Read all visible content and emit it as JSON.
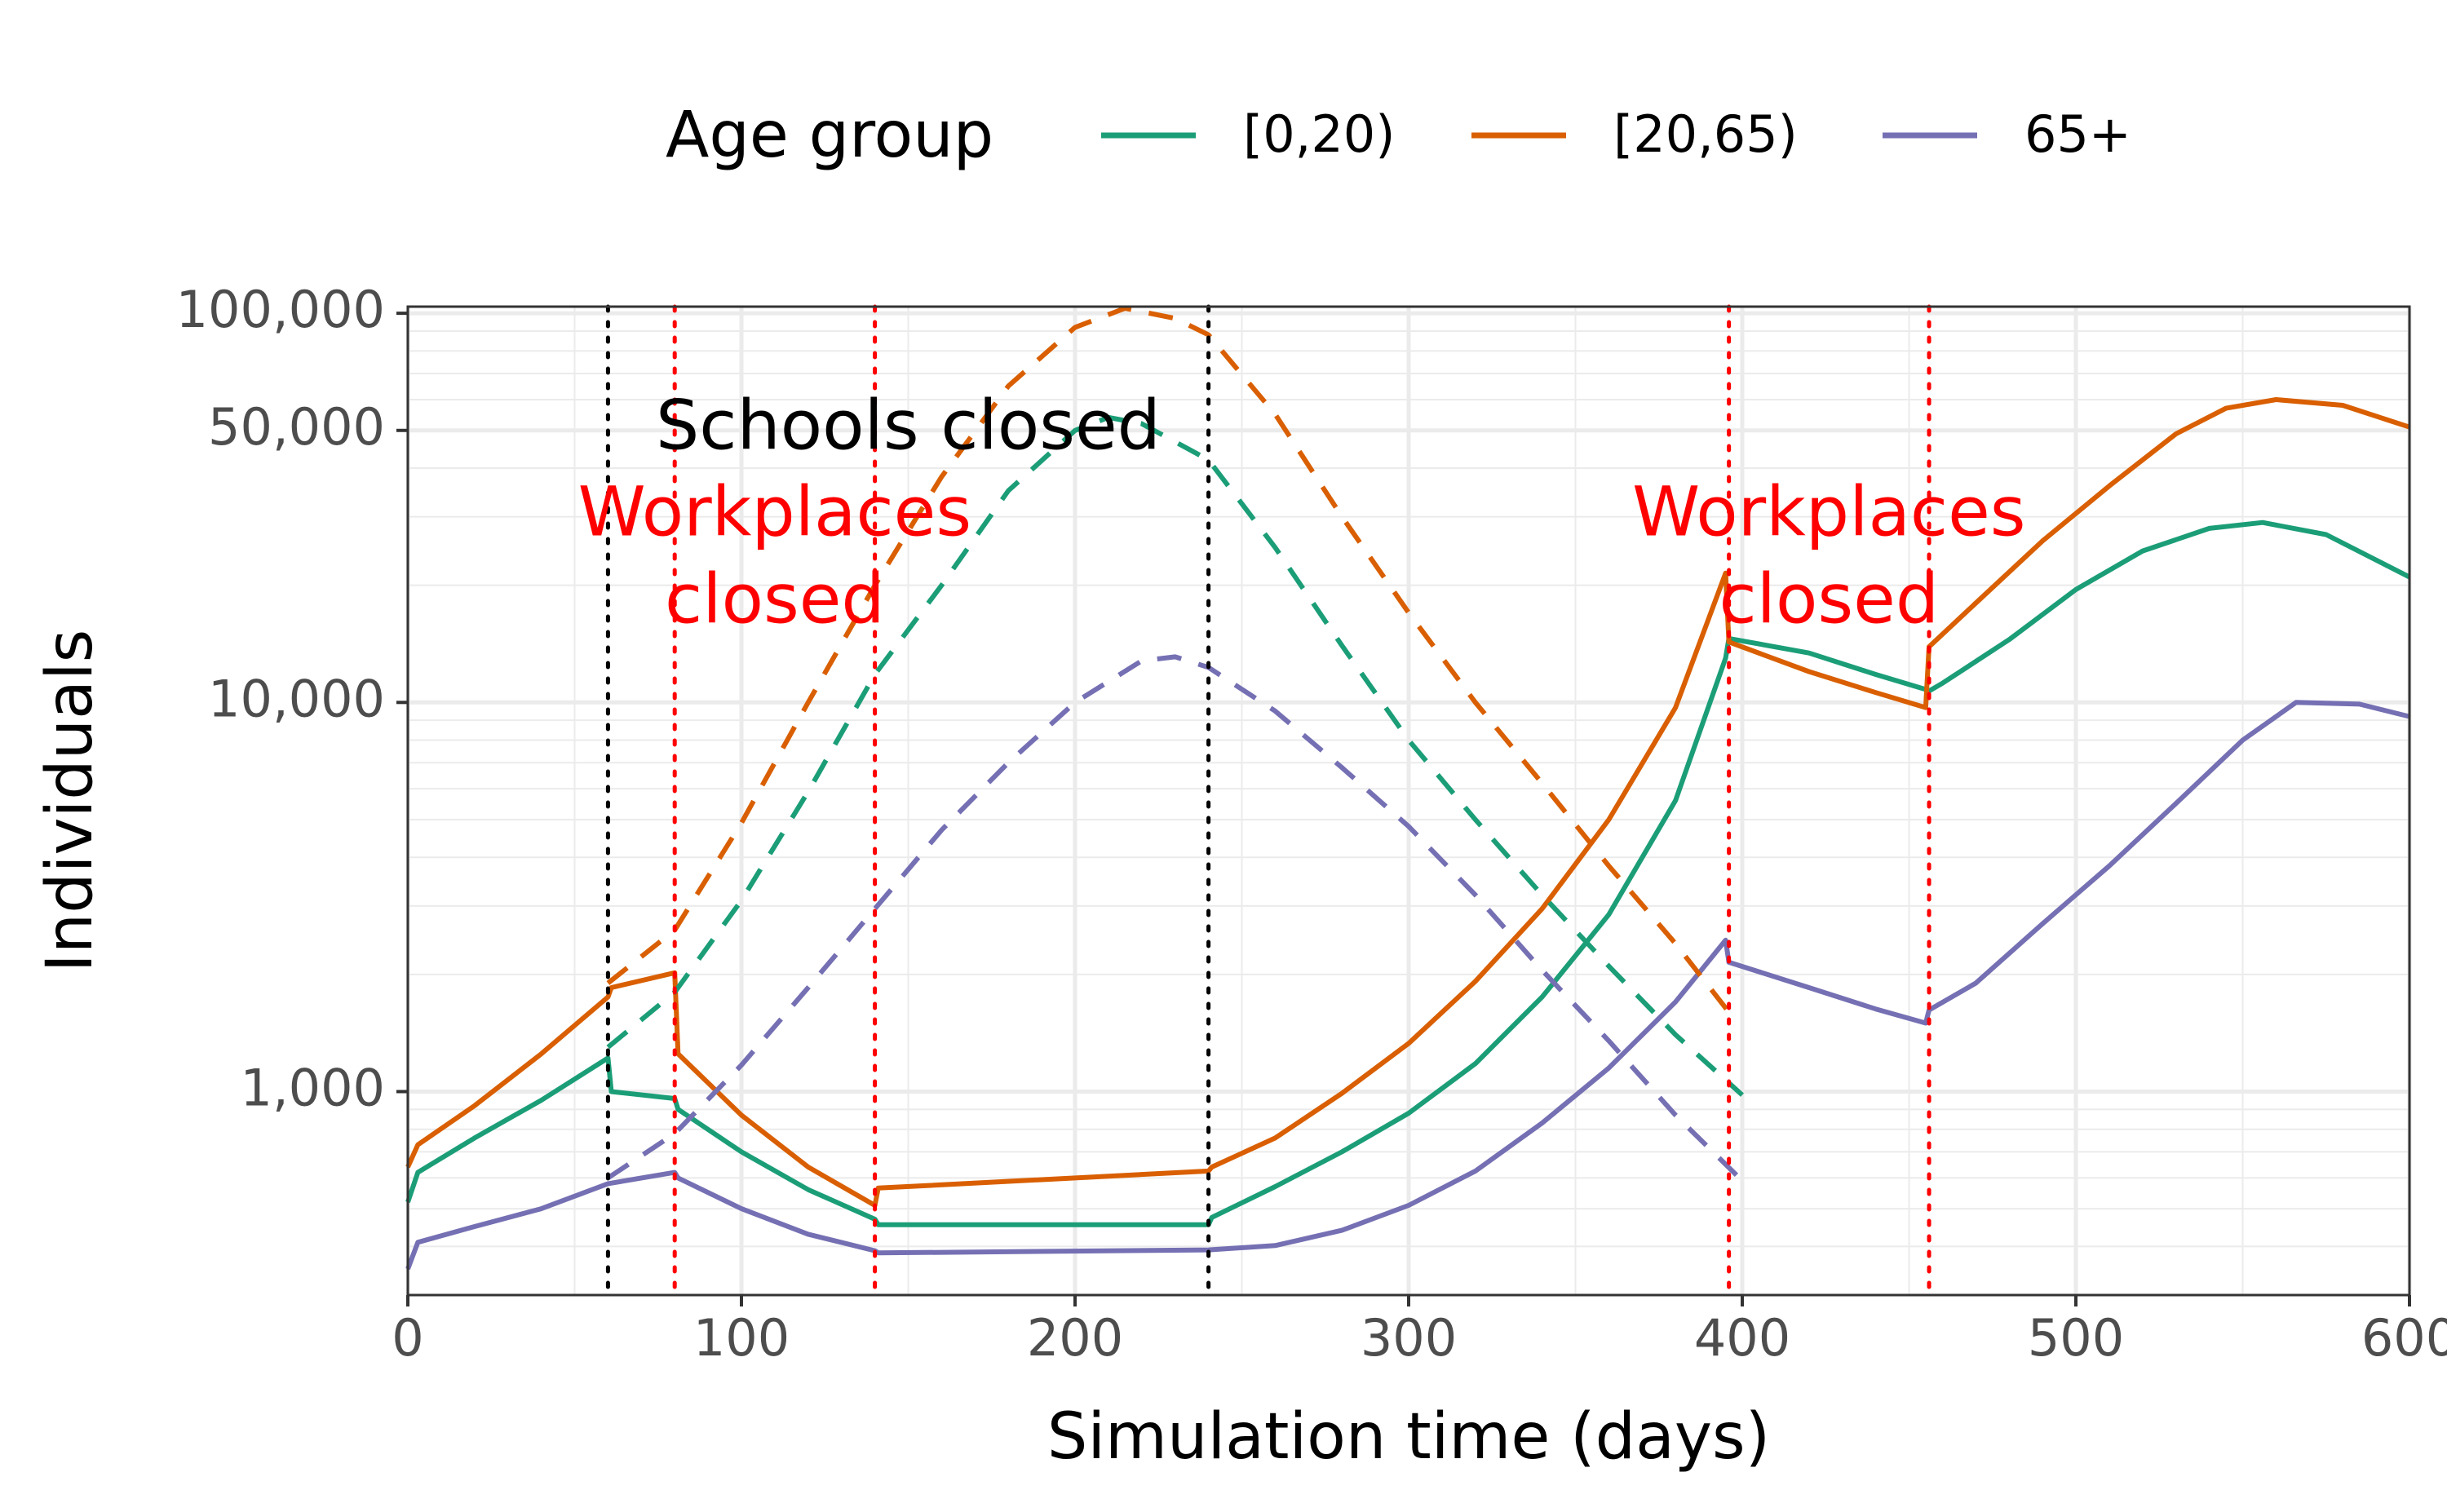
{
  "chart_data": {
    "type": "line",
    "xlabel": "Simulation time (days)",
    "ylabel": "Individuals",
    "xlim": [
      0,
      600
    ],
    "ylim": [
      300,
      104000
    ],
    "yscale": "log",
    "x_ticks": [
      0,
      100,
      200,
      300,
      400,
      500,
      600
    ],
    "x_tick_labels": [
      "0",
      "100",
      "200",
      "300",
      "400",
      "500",
      "600"
    ],
    "y_ticks": [
      1000,
      10000,
      50000,
      100000
    ],
    "y_tick_labels": [
      "1,000",
      "10,000",
      "50,000",
      "100,000"
    ],
    "grid": true,
    "legend": {
      "title": "Age group",
      "position": "top",
      "entries": [
        {
          "label": "[0,20)",
          "color": "#1b9e77"
        },
        {
          "label": "[20,65)",
          "color": "#d95f02"
        },
        {
          "label": "65+",
          "color": "#7570b3"
        }
      ]
    },
    "series": [
      {
        "name": "[0,20)",
        "style": "solid",
        "color": "#1b9e77",
        "points": [
          [
            0,
            520
          ],
          [
            3,
            620
          ],
          [
            20,
            760
          ],
          [
            40,
            950
          ],
          [
            60,
            1220
          ],
          [
            61,
            1000
          ],
          [
            80,
            960
          ],
          [
            81,
            900
          ],
          [
            100,
            700
          ],
          [
            120,
            560
          ],
          [
            140,
            470
          ],
          [
            141,
            455
          ],
          [
            240,
            455
          ],
          [
            241,
            475
          ],
          [
            260,
            570
          ],
          [
            280,
            700
          ],
          [
            300,
            880
          ],
          [
            320,
            1180
          ],
          [
            340,
            1750
          ],
          [
            360,
            2850
          ],
          [
            380,
            5600
          ],
          [
            395,
            13000
          ],
          [
            396,
            14600
          ],
          [
            420,
            13400
          ],
          [
            440,
            11800
          ],
          [
            455,
            10800
          ],
          [
            456,
            10700
          ],
          [
            460,
            11200
          ],
          [
            480,
            14500
          ],
          [
            500,
            19500
          ],
          [
            520,
            24500
          ],
          [
            540,
            28000
          ],
          [
            556,
            29000
          ],
          [
            575,
            27000
          ],
          [
            600,
            21000
          ]
        ]
      },
      {
        "name": "[20,65)",
        "style": "solid",
        "color": "#d95f02",
        "points": [
          [
            0,
            640
          ],
          [
            3,
            730
          ],
          [
            20,
            920
          ],
          [
            40,
            1250
          ],
          [
            60,
            1750
          ],
          [
            61,
            1850
          ],
          [
            80,
            2020
          ],
          [
            81,
            1250
          ],
          [
            100,
            870
          ],
          [
            120,
            640
          ],
          [
            140,
            510
          ],
          [
            141,
            565
          ],
          [
            240,
            625
          ],
          [
            241,
            640
          ],
          [
            260,
            760
          ],
          [
            280,
            990
          ],
          [
            300,
            1330
          ],
          [
            320,
            1920
          ],
          [
            340,
            2950
          ],
          [
            360,
            5000
          ],
          [
            380,
            9700
          ],
          [
            395,
            21500
          ],
          [
            396,
            14300
          ],
          [
            420,
            12000
          ],
          [
            440,
            10600
          ],
          [
            455,
            9700
          ],
          [
            456,
            13900
          ],
          [
            470,
            18000
          ],
          [
            490,
            26000
          ],
          [
            510,
            36000
          ],
          [
            530,
            49000
          ],
          [
            545,
            57000
          ],
          [
            560,
            60000
          ],
          [
            580,
            58000
          ],
          [
            600,
            51000
          ]
        ]
      },
      {
        "name": "65+",
        "style": "solid",
        "color": "#7570b3",
        "points": [
          [
            0,
            350
          ],
          [
            3,
            410
          ],
          [
            20,
            450
          ],
          [
            40,
            500
          ],
          [
            60,
            580
          ],
          [
            80,
            620
          ],
          [
            81,
            600
          ],
          [
            100,
            500
          ],
          [
            120,
            430
          ],
          [
            140,
            390
          ],
          [
            141,
            385
          ],
          [
            240,
            392
          ],
          [
            260,
            402
          ],
          [
            280,
            440
          ],
          [
            300,
            510
          ],
          [
            320,
            625
          ],
          [
            340,
            830
          ],
          [
            360,
            1150
          ],
          [
            380,
            1700
          ],
          [
            395,
            2450
          ],
          [
            396,
            2150
          ],
          [
            420,
            1850
          ],
          [
            440,
            1630
          ],
          [
            455,
            1500
          ],
          [
            456,
            1620
          ],
          [
            470,
            1900
          ],
          [
            490,
            2700
          ],
          [
            510,
            3800
          ],
          [
            530,
            5500
          ],
          [
            550,
            8000
          ],
          [
            566,
            10000
          ],
          [
            585,
            9900
          ],
          [
            600,
            9200
          ]
        ]
      },
      {
        "name": "[0,20)",
        "style": "dashed",
        "color": "#1b9e77",
        "points": [
          [
            60,
            1300
          ],
          [
            80,
            1800
          ],
          [
            100,
            3100
          ],
          [
            120,
            5900
          ],
          [
            140,
            11800
          ],
          [
            160,
            20000
          ],
          [
            180,
            35000
          ],
          [
            200,
            50000
          ],
          [
            210,
            54000
          ],
          [
            220,
            52000
          ],
          [
            240,
            42000
          ],
          [
            260,
            25000
          ],
          [
            280,
            14000
          ],
          [
            300,
            8000
          ],
          [
            320,
            5000
          ],
          [
            340,
            3200
          ],
          [
            360,
            2100
          ],
          [
            380,
            1400
          ],
          [
            400,
            980
          ]
        ]
      },
      {
        "name": "[20,65)",
        "style": "dashed",
        "color": "#d95f02",
        "points": [
          [
            60,
            1900
          ],
          [
            80,
            2600
          ],
          [
            100,
            4900
          ],
          [
            120,
            10000
          ],
          [
            140,
            20000
          ],
          [
            160,
            38000
          ],
          [
            180,
            65000
          ],
          [
            200,
            92000
          ],
          [
            215,
            103000
          ],
          [
            230,
            97000
          ],
          [
            240,
            88000
          ],
          [
            260,
            55000
          ],
          [
            280,
            30000
          ],
          [
            300,
            17000
          ],
          [
            320,
            10000
          ],
          [
            340,
            6200
          ],
          [
            360,
            3800
          ],
          [
            380,
            2400
          ],
          [
            396,
            1600
          ]
        ]
      },
      {
        "name": "65+",
        "style": "dashed",
        "color": "#7570b3",
        "points": [
          [
            60,
            600
          ],
          [
            80,
            780
          ],
          [
            100,
            1170
          ],
          [
            120,
            1850
          ],
          [
            140,
            2950
          ],
          [
            160,
            4700
          ],
          [
            180,
            7000
          ],
          [
            200,
            10000
          ],
          [
            220,
            12800
          ],
          [
            230,
            13100
          ],
          [
            240,
            12300
          ],
          [
            260,
            9500
          ],
          [
            280,
            6800
          ],
          [
            300,
            4800
          ],
          [
            320,
            3200
          ],
          [
            340,
            2050
          ],
          [
            360,
            1350
          ],
          [
            380,
            870
          ],
          [
            400,
            590
          ]
        ]
      }
    ],
    "vlines": [
      {
        "x": 60,
        "color": "#000000",
        "style": "dotted"
      },
      {
        "x": 240,
        "color": "#000000",
        "style": "dotted"
      },
      {
        "x": 80,
        "color": "#ff0000",
        "style": "dotted"
      },
      {
        "x": 140,
        "color": "#ff0000",
        "style": "dotted"
      },
      {
        "x": 396,
        "color": "#ff0000",
        "style": "dotted"
      },
      {
        "x": 456,
        "color": "#ff0000",
        "style": "dotted"
      }
    ],
    "annotations": [
      {
        "text": "Schools closed",
        "color": "#000000",
        "x": 150,
        "y": 50000
      },
      {
        "text": "Workplaces",
        "color": "#ff0000",
        "x": 110,
        "y": 30000
      },
      {
        "text": "closed",
        "color": "#ff0000",
        "x": 110,
        "y": 17900
      },
      {
        "text": "Workplaces",
        "color": "#ff0000",
        "x": 426,
        "y": 30000
      },
      {
        "text": "closed",
        "color": "#ff0000",
        "x": 426,
        "y": 17900
      }
    ]
  }
}
